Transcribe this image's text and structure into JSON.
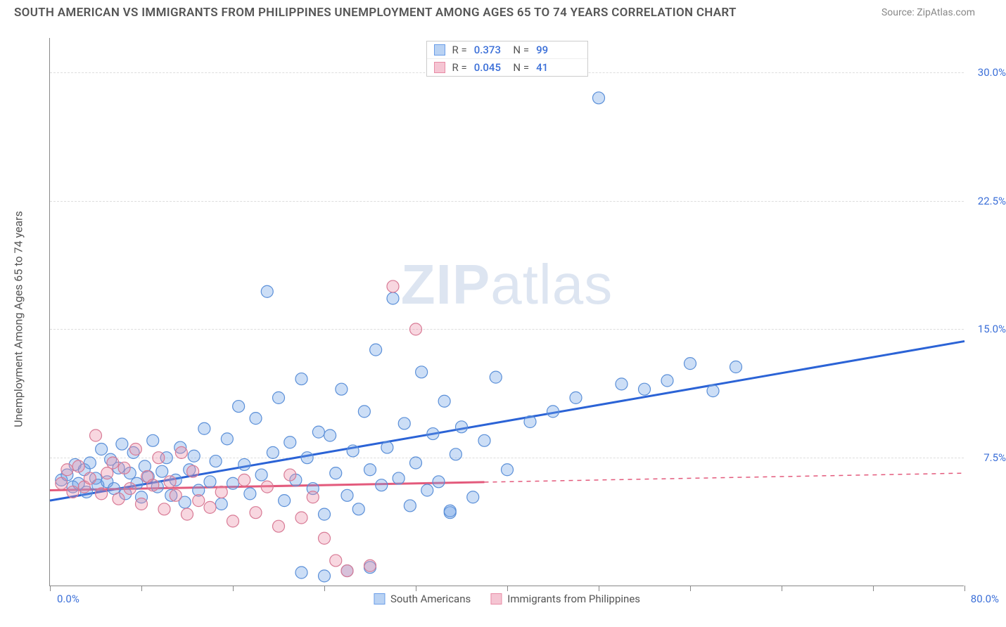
{
  "header": {
    "title": "SOUTH AMERICAN VS IMMIGRANTS FROM PHILIPPINES UNEMPLOYMENT AMONG AGES 65 TO 74 YEARS CORRELATION CHART",
    "source": "Source: ZipAtlas.com"
  },
  "chart": {
    "type": "scatter",
    "y_axis_label": "Unemployment Among Ages 65 to 74 years",
    "xlim": [
      0,
      80
    ],
    "ylim": [
      0,
      32
    ],
    "x_ticks": [
      0,
      8,
      16,
      24,
      32,
      40,
      48,
      56,
      64,
      72,
      80
    ],
    "y_gridlines": [
      7.5,
      15.0,
      22.5,
      30.0
    ],
    "y_tick_labels": [
      "7.5%",
      "15.0%",
      "22.5%",
      "30.0%"
    ],
    "x_start_label": "0.0%",
    "x_end_label": "80.0%",
    "axis_label_color": "#3b6fd8",
    "grid_color": "#dddddd",
    "background_color": "#ffffff",
    "marker_radius": 8.5,
    "marker_stroke_width": 1.2,
    "line_width": 3,
    "watermark": {
      "text_bold": "ZIP",
      "text_light": "atlas",
      "color": "rgba(120,150,200,0.25)"
    },
    "series": [
      {
        "name": "South Americans",
        "swatch_fill": "#b9d2f3",
        "swatch_border": "#6a9de8",
        "marker_fill": "rgba(110,160,230,0.35)",
        "marker_stroke": "#5a8fd8",
        "line_color": "#2b63d6",
        "stats": {
          "R": "0.373",
          "N": "99"
        },
        "trend": {
          "x1": 0,
          "y1": 5.0,
          "x2": 80,
          "y2": 14.3,
          "dash_after_x": 80
        },
        "points": [
          [
            1,
            6.2
          ],
          [
            1.5,
            6.5
          ],
          [
            2,
            5.8
          ],
          [
            2.2,
            7.1
          ],
          [
            2.5,
            6.0
          ],
          [
            3,
            6.8
          ],
          [
            3.2,
            5.5
          ],
          [
            3.5,
            7.2
          ],
          [
            4,
            6.3
          ],
          [
            4.2,
            5.9
          ],
          [
            4.5,
            8.0
          ],
          [
            5,
            6.1
          ],
          [
            5.3,
            7.4
          ],
          [
            5.6,
            5.7
          ],
          [
            6,
            6.9
          ],
          [
            6.3,
            8.3
          ],
          [
            6.6,
            5.4
          ],
          [
            7,
            6.6
          ],
          [
            7.3,
            7.8
          ],
          [
            7.6,
            6.0
          ],
          [
            8,
            5.2
          ],
          [
            8.3,
            7.0
          ],
          [
            8.6,
            6.4
          ],
          [
            9,
            8.5
          ],
          [
            9.4,
            5.8
          ],
          [
            9.8,
            6.7
          ],
          [
            10.2,
            7.5
          ],
          [
            10.6,
            5.3
          ],
          [
            11,
            6.2
          ],
          [
            11.4,
            8.1
          ],
          [
            11.8,
            4.9
          ],
          [
            12.2,
            6.8
          ],
          [
            12.6,
            7.6
          ],
          [
            13,
            5.6
          ],
          [
            13.5,
            9.2
          ],
          [
            14,
            6.1
          ],
          [
            14.5,
            7.3
          ],
          [
            15,
            4.8
          ],
          [
            15.5,
            8.6
          ],
          [
            16,
            6.0
          ],
          [
            16.5,
            10.5
          ],
          [
            17,
            7.1
          ],
          [
            17.5,
            5.4
          ],
          [
            18,
            9.8
          ],
          [
            18.5,
            6.5
          ],
          [
            19,
            17.2
          ],
          [
            19.5,
            7.8
          ],
          [
            20,
            11.0
          ],
          [
            20.5,
            5.0
          ],
          [
            21,
            8.4
          ],
          [
            21.5,
            6.2
          ],
          [
            22,
            12.1
          ],
          [
            22.5,
            7.5
          ],
          [
            23,
            5.7
          ],
          [
            23.5,
            9.0
          ],
          [
            24,
            4.2
          ],
          [
            24.5,
            8.8
          ],
          [
            25,
            6.6
          ],
          [
            25.5,
            11.5
          ],
          [
            26,
            5.3
          ],
          [
            26.5,
            7.9
          ],
          [
            27,
            4.5
          ],
          [
            27.5,
            10.2
          ],
          [
            28,
            6.8
          ],
          [
            28.5,
            13.8
          ],
          [
            29,
            5.9
          ],
          [
            29.5,
            8.1
          ],
          [
            30,
            16.8
          ],
          [
            30.5,
            6.3
          ],
          [
            31,
            9.5
          ],
          [
            31.5,
            4.7
          ],
          [
            32,
            7.2
          ],
          [
            32.5,
            12.5
          ],
          [
            33,
            5.6
          ],
          [
            33.5,
            8.9
          ],
          [
            34,
            6.1
          ],
          [
            34.5,
            10.8
          ],
          [
            35,
            4.3
          ],
          [
            35.5,
            7.7
          ],
          [
            36,
            9.3
          ],
          [
            37,
            5.2
          ],
          [
            38,
            8.5
          ],
          [
            39,
            12.2
          ],
          [
            40,
            6.8
          ],
          [
            42,
            9.6
          ],
          [
            44,
            10.2
          ],
          [
            46,
            11.0
          ],
          [
            48,
            28.5
          ],
          [
            50,
            11.8
          ],
          [
            52,
            11.5
          ],
          [
            54,
            12.0
          ],
          [
            56,
            13.0
          ],
          [
            58,
            11.4
          ],
          [
            60,
            12.8
          ],
          [
            35,
            4.4
          ],
          [
            22,
            0.8
          ],
          [
            24,
            0.6
          ],
          [
            26,
            0.9
          ],
          [
            28,
            1.1
          ]
        ]
      },
      {
        "name": "Immigrants from Philippines",
        "swatch_fill": "#f5c5d3",
        "swatch_border": "#e88ba5",
        "marker_fill": "rgba(235,140,165,0.35)",
        "marker_stroke": "#d87a95",
        "line_color": "#e35a7c",
        "stats": {
          "R": "0.045",
          "N": "41"
        },
        "trend": {
          "x1": 0,
          "y1": 5.6,
          "x2": 80,
          "y2": 6.6,
          "dash_after_x": 38
        },
        "points": [
          [
            1,
            6.0
          ],
          [
            1.5,
            6.8
          ],
          [
            2,
            5.5
          ],
          [
            2.5,
            7.0
          ],
          [
            3,
            5.8
          ],
          [
            3.5,
            6.3
          ],
          [
            4,
            8.8
          ],
          [
            4.5,
            5.4
          ],
          [
            5,
            6.6
          ],
          [
            5.5,
            7.2
          ],
          [
            6,
            5.1
          ],
          [
            6.5,
            6.9
          ],
          [
            7,
            5.7
          ],
          [
            7.5,
            8.0
          ],
          [
            8,
            4.8
          ],
          [
            8.5,
            6.4
          ],
          [
            9,
            5.9
          ],
          [
            9.5,
            7.5
          ],
          [
            10,
            4.5
          ],
          [
            10.5,
            6.1
          ],
          [
            11,
            5.3
          ],
          [
            11.5,
            7.8
          ],
          [
            12,
            4.2
          ],
          [
            12.5,
            6.7
          ],
          [
            13,
            5.0
          ],
          [
            14,
            4.6
          ],
          [
            15,
            5.5
          ],
          [
            16,
            3.8
          ],
          [
            17,
            6.2
          ],
          [
            18,
            4.3
          ],
          [
            19,
            5.8
          ],
          [
            20,
            3.5
          ],
          [
            21,
            6.5
          ],
          [
            22,
            4.0
          ],
          [
            23,
            5.2
          ],
          [
            24,
            2.8
          ],
          [
            25,
            1.5
          ],
          [
            26,
            0.9
          ],
          [
            28,
            1.2
          ],
          [
            30,
            17.5
          ],
          [
            32,
            15.0
          ]
        ]
      }
    ],
    "legend_top_order": [
      0,
      1
    ],
    "legend_bottom_order": [
      0,
      1
    ]
  }
}
